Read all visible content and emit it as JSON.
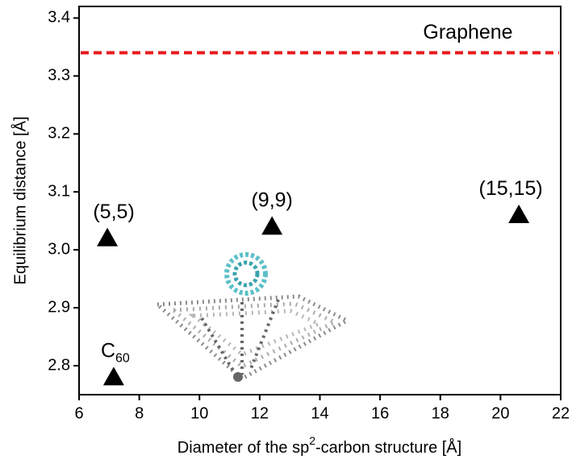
{
  "chart_data": {
    "type": "scatter",
    "x_label": [
      "Diameter of the sp",
      "2",
      "-carbon structure [Å]"
    ],
    "y_label": "Equilibrium distance [Å]",
    "x": [
      7.15,
      6.94,
      12.41,
      20.61
    ],
    "values": [
      2.78,
      3.02,
      3.04,
      3.06
    ],
    "point_labels": [
      {
        "text": "C",
        "sub": "60"
      },
      {
        "text": "(5,5)"
      },
      {
        "text": "(9,9)"
      },
      {
        "text": "(15,15)"
      }
    ],
    "color": "#000000",
    "reference_line": {
      "label": "Graphene",
      "value": 3.34,
      "color": "#e8191c"
    },
    "xlim": [
      6,
      22
    ],
    "xticks": [
      6,
      8,
      10,
      12,
      14,
      16,
      18,
      20,
      22
    ],
    "ylim": [
      2.75,
      3.42
    ],
    "yticks": [
      2.8,
      2.9,
      {
        "value": 3,
        "label": "3.0"
      },
      3.1,
      3.2,
      3.3,
      3.4
    ]
  }
}
